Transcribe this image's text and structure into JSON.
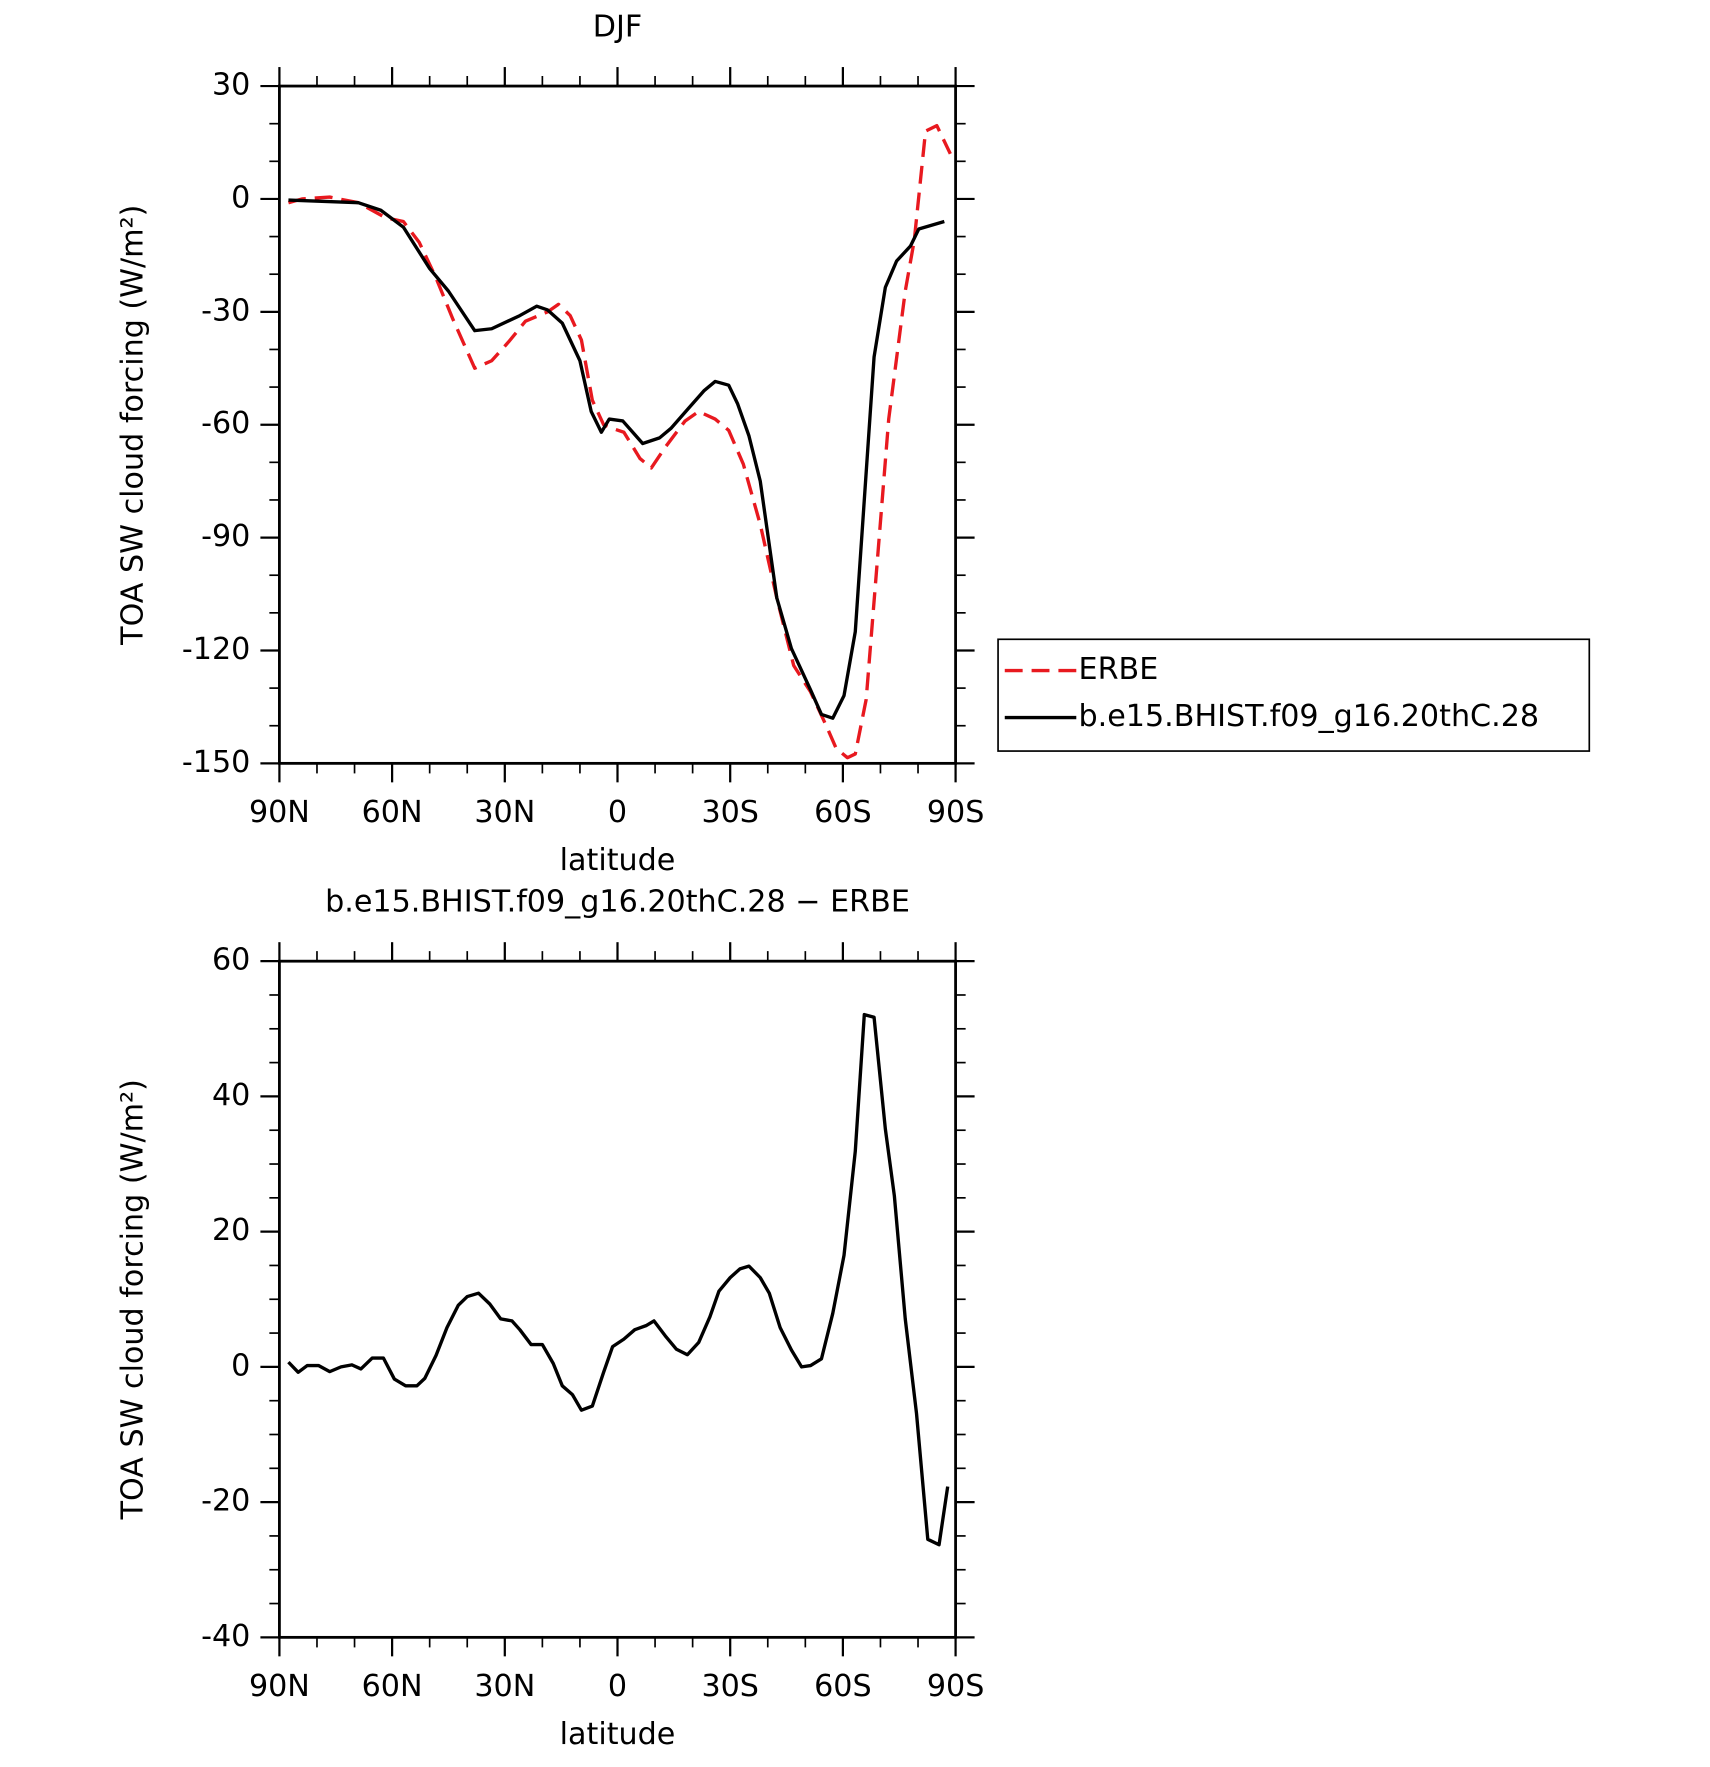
{
  "chart_data": [
    {
      "type": "line",
      "title": "DJF",
      "x_label": "latitude",
      "y_label": "TOA SW cloud forcing (W/m²)",
      "xlim": [
        90,
        -90
      ],
      "xticks": [
        {
          "value": 90,
          "label": "90N"
        },
        {
          "value": 60,
          "label": "60N"
        },
        {
          "value": 30,
          "label": "30N"
        },
        0,
        {
          "value": -30,
          "label": "30S"
        },
        {
          "value": -60,
          "label": "60S"
        },
        {
          "value": -90,
          "label": "90S"
        }
      ],
      "ylim": [
        30,
        -150
      ],
      "yticks": [
        30,
        0,
        -30,
        -60,
        -90,
        -120,
        -150
      ],
      "legend": "right",
      "series": [
        {
          "name": "ERBE",
          "color": "#e8191f",
          "dash": "dashed",
          "x": [
            87.6,
            84,
            76.6,
            69,
            61.7,
            57,
            52.8,
            48.3,
            43.8,
            38,
            33.5,
            29,
            24.5,
            18.6,
            15.7,
            12.6,
            9.6,
            6.7,
            3.7,
            1.3,
            -1.7,
            -6,
            -9,
            -12.7,
            -18,
            -21.6,
            -26,
            -29.6,
            -33.5,
            -38,
            -42.4,
            -46.9,
            -51.4,
            -55.8,
            -58.2,
            -61.2,
            -63.3,
            -66.2,
            -72.2,
            -76.6,
            -79,
            -82,
            -85,
            -88.6
          ],
          "values": [
            -1,
            0,
            0.5,
            -1,
            -5,
            -6,
            -11.5,
            -21,
            -32,
            -45,
            -43,
            -38,
            -32.5,
            -30,
            -28,
            -31,
            -37.5,
            -53.5,
            -60,
            -61,
            -62,
            -69,
            -71.5,
            -66,
            -59,
            -56.5,
            -58.5,
            -61.5,
            -70.5,
            -86.5,
            -106,
            -124,
            -131,
            -140.5,
            -146,
            -148.5,
            -147.5,
            -133,
            -58.5,
            -24.5,
            -11,
            18,
            19.5,
            12
          ]
        },
        {
          "name": "b.e15.BHIST.f09_g16.20thC.28",
          "color": "#000000",
          "dash": "solid",
          "x": [
            87.6,
            69,
            63,
            57,
            50,
            45,
            38,
            33.5,
            26,
            21.5,
            18.6,
            14.7,
            10,
            7,
            4.3,
            2.2,
            -1.4,
            -6.7,
            -11.2,
            -14.2,
            -18.6,
            -23,
            -26,
            -29.6,
            -32,
            -35,
            -38,
            -42.4,
            -46.3,
            -51.4,
            -54.3,
            -57.3,
            -60.3,
            -63.3,
            -68.3,
            -71.3,
            -74.3,
            -78,
            -80.2,
            -87
          ],
          "values": [
            -0.3,
            -1,
            -3,
            -7.5,
            -18.5,
            -24.5,
            -35,
            -34.5,
            -31,
            -28.5,
            -29.5,
            -33,
            -43,
            -56.5,
            -62,
            -58.5,
            -59,
            -65,
            -63.5,
            -61,
            -56,
            -51,
            -48.5,
            -49.5,
            -54.5,
            -63,
            -75,
            -106,
            -119.5,
            -130.5,
            -137,
            -138,
            -132,
            -115,
            -42,
            -23.5,
            -16.5,
            -12.5,
            -8,
            -6
          ]
        }
      ]
    },
    {
      "type": "line",
      "title": "b.e15.BHIST.f09_g16.20thC.28 − ERBE",
      "x_label": "latitude",
      "y_label": "TOA SW cloud forcing (W/m²)",
      "xlim": [
        90,
        -90
      ],
      "xticks": [
        {
          "value": 90,
          "label": "90N"
        },
        {
          "value": 60,
          "label": "60N"
        },
        {
          "value": 30,
          "label": "30N"
        },
        0,
        {
          "value": -30,
          "label": "30S"
        },
        {
          "value": -60,
          "label": "60S"
        },
        {
          "value": -90,
          "label": "90S"
        }
      ],
      "ylim": [
        60,
        -40
      ],
      "yticks": [
        60,
        40,
        20,
        0,
        -20,
        -40
      ],
      "series": [
        {
          "color": "#000000",
          "dash": "solid",
          "x": [
            87.6,
            85,
            82.6,
            79.6,
            76.6,
            73.6,
            70.7,
            68.3,
            65.3,
            62.3,
            59.4,
            56.4,
            53.4,
            51.3,
            48.3,
            45.4,
            42.4,
            40,
            37,
            34,
            31.1,
            28.1,
            26,
            23,
            20,
            17.1,
            14.7,
            12,
            9.6,
            6.7,
            3.7,
            1.3,
            -1.7,
            -4.6,
            -7.6,
            -9.7,
            -12.7,
            -15.7,
            -18.6,
            -21.6,
            -24.6,
            -27,
            -30,
            -32.6,
            -35,
            -38,
            -40.4,
            -43.3,
            -46.3,
            -49,
            -51.4,
            -54.3,
            -57.3,
            -60.3,
            -63.3,
            -65.7,
            -68.3,
            -71.3,
            -73.7,
            -76.6,
            -79.6,
            -82.6,
            -85.6,
            -87.9
          ],
          "values": [
            0.7,
            -0.8,
            0.2,
            0.2,
            -0.7,
            0,
            0.3,
            -0.3,
            1.3,
            1.3,
            -1.8,
            -2.8,
            -2.8,
            -1.7,
            1.7,
            5.8,
            9.1,
            10.4,
            10.9,
            9.3,
            7.1,
            6.8,
            5.5,
            3.3,
            3.3,
            0.5,
            -2.8,
            -4.1,
            -6.4,
            -5.8,
            -0.8,
            3,
            4.1,
            5.5,
            6.1,
            6.8,
            4.6,
            2.6,
            1.8,
            3.6,
            7.4,
            11.2,
            13.2,
            14.5,
            14.9,
            13.2,
            10.9,
            5.8,
            2.5,
            0,
            0.2,
            1.2,
            7.9,
            16.5,
            31.9,
            52.1,
            51.7,
            35.2,
            25.3,
            7.1,
            -6.9,
            -25.5,
            -26.3,
            -17.7
          ]
        }
      ]
    }
  ]
}
